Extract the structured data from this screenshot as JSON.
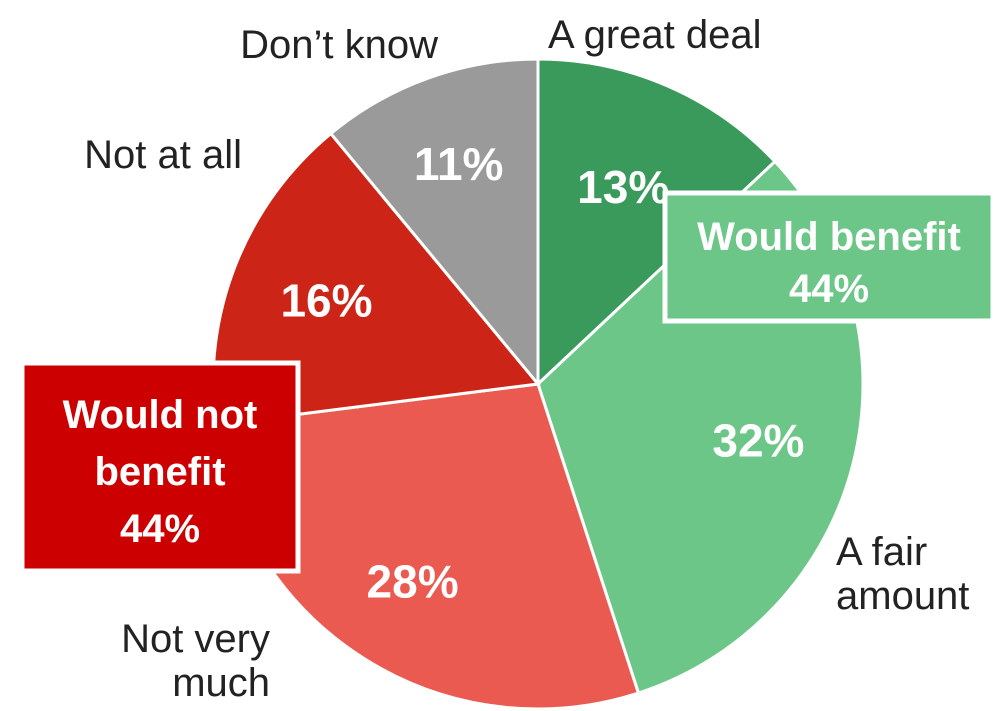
{
  "chart_data": {
    "type": "pie",
    "title": "",
    "start_angle_deg": 0,
    "direction": "clockwise",
    "slices": [
      {
        "label": "A great deal",
        "value": 13,
        "display": "13%",
        "color": "#3a9a5b"
      },
      {
        "label": "A fair amount",
        "value": 32,
        "display": "32%",
        "color": "#6cc688"
      },
      {
        "label": "Not very much",
        "value": 28,
        "display": "28%",
        "color": "#eb5a50"
      },
      {
        "label": "Not at all",
        "value": 16,
        "display": "16%",
        "color": "#cc2416"
      },
      {
        "label": "Don’t know",
        "value": 11,
        "display": "11%",
        "color": "#9a9a9a"
      }
    ],
    "groups": [
      {
        "title": "Would benefit",
        "value": "44%",
        "color": "#6cc688"
      },
      {
        "title": "Would not benefit",
        "value": "44%",
        "color": "#cc0000"
      }
    ]
  }
}
